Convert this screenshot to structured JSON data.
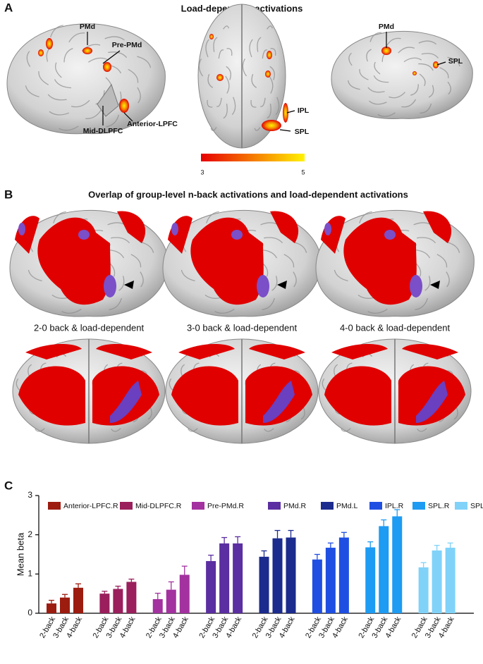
{
  "panel_a": {
    "label": "A",
    "title": "Load-dependent activations",
    "regions": [
      "PMd",
      "Pre-PMd",
      "Anterior-LPFC",
      "Mid-DLPFC",
      "IPL",
      "SPL",
      "PMd",
      "SPL"
    ],
    "colorbar_ticks": [
      3,
      5
    ]
  },
  "panel_b": {
    "label": "B",
    "title": "Overlap of group-level n-back activations and load-dependent activations",
    "captions": [
      "2-0 back & load-dependent",
      "3-0 back & load-dependent",
      "4-0 back & load-dependent"
    ]
  },
  "chart_data": {
    "label": "C",
    "type": "bar",
    "y_label": "Mean beta",
    "categories": [
      "2-back",
      "3-back",
      "4-back"
    ],
    "series": [
      {
        "name": "Anterior-LPFC.R",
        "color": "#9c1c10",
        "values": [
          0.25,
          0.4,
          0.65
        ],
        "errors": [
          0.08,
          0.08,
          0.1
        ]
      },
      {
        "name": "Mid-DLPFC.R",
        "color": "#9a1f5c",
        "values": [
          0.5,
          0.62,
          0.8
        ],
        "errors": [
          0.06,
          0.07,
          0.07
        ]
      },
      {
        "name": "Pre-PMd.R",
        "color": "#a3319f",
        "values": [
          0.36,
          0.6,
          0.98
        ],
        "errors": [
          0.15,
          0.2,
          0.22
        ]
      },
      {
        "name": "PMd.R",
        "color": "#5b2ea1",
        "values": [
          1.33,
          1.78,
          1.78
        ],
        "errors": [
          0.15,
          0.15,
          0.17
        ]
      },
      {
        "name": "PMd.L",
        "color": "#1b2b8e",
        "values": [
          1.44,
          1.91,
          1.93
        ],
        "errors": [
          0.15,
          0.2,
          0.18
        ]
      },
      {
        "name": "IPL.R",
        "color": "#1f4fe2",
        "values": [
          1.37,
          1.67,
          1.93
        ],
        "errors": [
          0.13,
          0.12,
          0.13
        ]
      },
      {
        "name": "SPL.R",
        "color": "#1e9bf2",
        "values": [
          1.68,
          2.22,
          2.47
        ],
        "errors": [
          0.14,
          0.16,
          0.17
        ]
      },
      {
        "name": "SPL.L",
        "color": "#80d2f9",
        "values": [
          1.17,
          1.6,
          1.67
        ],
        "errors": [
          0.12,
          0.13,
          0.12
        ]
      }
    ],
    "ylim": [
      0,
      3
    ],
    "yticks": [
      0,
      1,
      2,
      3
    ]
  }
}
